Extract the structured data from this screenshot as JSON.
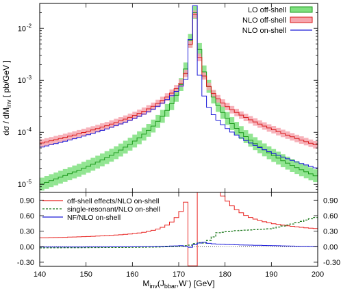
{
  "chart_data": [
    {
      "type": "line",
      "panel": "main",
      "scale": "log",
      "ylabel_parts": {
        "main": "dσ / dM",
        "sub": "inv",
        "rest": "  [ pb/GeV ]"
      },
      "xlim": [
        140,
        200
      ],
      "ylim": [
        7e-06,
        0.03
      ],
      "yticks": [
        {
          "value": 1e-05,
          "base": "10",
          "exp": "-5"
        },
        {
          "value": 0.0001,
          "base": "10",
          "exp": "-4"
        },
        {
          "value": 0.001,
          "base": "10",
          "exp": "-3"
        },
        {
          "value": 0.01,
          "base": "10",
          "exp": "-2"
        }
      ],
      "legend_position": "top-right",
      "series": [
        {
          "name": "LO off-shell",
          "style": "band",
          "color": "#1a9a1a",
          "fill": "#7fe07f",
          "x": [
            140,
            141,
            142,
            143,
            144,
            145,
            146,
            147,
            148,
            149,
            150,
            151,
            152,
            153,
            154,
            155,
            156,
            157,
            158,
            159,
            160,
            161,
            162,
            163,
            164,
            165,
            166,
            167,
            168,
            169,
            170,
            171,
            172,
            173,
            174,
            175,
            176,
            177,
            178,
            179,
            180,
            181,
            182,
            183,
            184,
            185,
            186,
            187,
            188,
            189,
            190,
            191,
            192,
            193,
            194,
            195,
            196,
            197,
            198,
            199
          ],
          "values": [
            1.01e-05,
            1.09e-05,
            1.18e-05,
            1.27e-05,
            1.37e-05,
            1.48e-05,
            1.6e-05,
            1.73e-05,
            1.87e-05,
            2.04e-05,
            2.22e-05,
            2.43e-05,
            2.67e-05,
            2.94e-05,
            3.26e-05,
            3.63e-05,
            4.06e-05,
            4.57e-05,
            5.18e-05,
            5.9e-05,
            6.79e-05,
            7.86e-05,
            9.22e-05,
            0.000109,
            0.000132,
            0.000162,
            0.000203,
            0.000263,
            0.000355,
            0.000512,
            0.000824,
            0.00165,
            0.00582,
            0.02,
            0.0039,
            0.00145,
            0.000761,
            0.000476,
            0.000328,
            0.000241,
            0.000185,
            0.000147,
            0.000119,
            9.86e-05,
            8.28e-05,
            7.04e-05,
            6.05e-05,
            5.25e-05,
            4.59e-05,
            4.04e-05,
            3.58e-05,
            3.19e-05,
            2.85e-05,
            2.56e-05,
            2.31e-05,
            2.1e-05,
            1.91e-05,
            1.74e-05,
            1.59e-05,
            1.46e-05
          ],
          "band_factor": 1.33
        },
        {
          "name": "NLO off-shell",
          "style": "band",
          "color": "#d81a1a",
          "fill": "#f6a5ae",
          "x": [
            140,
            141,
            142,
            143,
            144,
            145,
            146,
            147,
            148,
            149,
            150,
            151,
            152,
            153,
            154,
            155,
            156,
            157,
            158,
            159,
            160,
            161,
            162,
            163,
            164,
            165,
            166,
            167,
            168,
            169,
            170,
            171,
            172,
            173,
            174,
            175,
            176,
            177,
            178,
            179,
            180,
            181,
            182,
            183,
            184,
            185,
            186,
            187,
            188,
            189,
            190,
            191,
            192,
            193,
            194,
            195,
            196,
            197,
            198,
            199
          ],
          "values": [
            6.23e-05,
            6.54e-05,
            6.87e-05,
            7.22e-05,
            7.59e-05,
            7.99e-05,
            8.42e-05,
            8.88e-05,
            9.38e-05,
            9.92e-05,
            0.000105,
            0.000111,
            0.000118,
            0.000126,
            0.000134,
            0.000144,
            0.000154,
            0.000166,
            0.000179,
            0.000194,
            0.000211,
            0.000231,
            0.000254,
            0.000282,
            0.000316,
            0.000358,
            0.00041,
            0.000477,
            0.000566,
            0.000689,
            0.00088,
            0.00135,
            0.00494,
            0.0185,
            0.00276,
            0.00121,
            0.000761,
            0.000556,
            0.000441,
            0.000366,
            0.000312,
            0.000272,
            0.00024,
            0.000214,
            0.000193,
            0.000174,
            0.000158,
            0.000144,
            0.000132,
            0.000121,
            0.000112,
            0.000103,
            9.52e-05,
            8.82e-05,
            8.19e-05,
            7.61e-05,
            7.09e-05,
            6.61e-05,
            6.17e-05,
            5.76e-05
          ],
          "band_factor": 1.18
        },
        {
          "name": "NLO on-shell",
          "style": "line",
          "color": "#1a1ad8",
          "x": [
            140,
            141,
            142,
            143,
            144,
            145,
            146,
            147,
            148,
            149,
            150,
            151,
            152,
            153,
            154,
            155,
            156,
            157,
            158,
            159,
            160,
            161,
            162,
            163,
            164,
            165,
            166,
            167,
            168,
            169,
            170,
            171,
            172,
            173,
            174,
            175,
            176,
            177,
            178,
            179,
            180,
            181,
            182,
            183,
            184,
            185,
            186,
            187,
            188,
            189,
            190,
            191,
            192,
            193,
            194,
            195,
            196,
            197,
            198,
            199
          ],
          "values": [
            5.2e-05,
            5.47e-05,
            5.76e-05,
            6.06e-05,
            6.39e-05,
            6.74e-05,
            7.12e-05,
            7.53e-05,
            7.97e-05,
            8.45e-05,
            8.97e-05,
            9.54e-05,
            0.000102,
            0.000109,
            0.000116,
            0.000125,
            0.000135,
            0.000145,
            0.000157,
            0.000171,
            0.000186,
            0.000203,
            0.000224,
            0.000249,
            0.000279,
            0.000317,
            0.000364,
            0.000424,
            0.000503,
            0.000612,
            0.000775,
            0.00104,
            0.00612,
            0.0272,
            0.00125,
            0.000499,
            0.000302,
            0.000218,
            0.000171,
            0.00014,
            0.000118,
            0.000101,
            8.83e-05,
            7.79e-05,
            6.94e-05,
            6.22e-05,
            5.61e-05,
            5.09e-05,
            4.64e-05,
            4.25e-05,
            3.91e-05,
            3.61e-05,
            3.34e-05,
            3.1e-05,
            2.89e-05,
            2.69e-05,
            2.52e-05,
            2.36e-05,
            2.21e-05,
            2.08e-05
          ]
        }
      ]
    },
    {
      "type": "line",
      "panel": "ratio",
      "xlabel_parts": {
        "main": "M",
        "sub1": "inv",
        "mid": "(J",
        "sub2": "bbar",
        "mid2": ",W",
        "sup": "-",
        "rest": ")  [GeV]"
      },
      "xlim": [
        140,
        200
      ],
      "ylim": [
        -0.38,
        1.05
      ],
      "xticks": [
        "140",
        "150",
        "160",
        "170",
        "180",
        "190",
        "200"
      ],
      "yticks": [
        "-0.30",
        "0.00",
        "0.30",
        "0.60",
        "0.90"
      ],
      "ytick_values": [
        -0.3,
        0,
        0.3,
        0.6,
        0.9
      ],
      "reference_line": 0,
      "legend_position": "top-left",
      "series": [
        {
          "name": "off-shell effects/NLO on-shell",
          "style": "step",
          "color": "#e8211e",
          "x": [
            140,
            141,
            142,
            143,
            144,
            145,
            146,
            147,
            148,
            149,
            150,
            151,
            152,
            153,
            154,
            155,
            156,
            157,
            158,
            159,
            160,
            161,
            162,
            163,
            164,
            165,
            166,
            167,
            168,
            169,
            170,
            171,
            172,
            173,
            174,
            175,
            176,
            177,
            178,
            179,
            180,
            181,
            182,
            183,
            184,
            185,
            186,
            187,
            188,
            189,
            190,
            191,
            192,
            193,
            194,
            195,
            196,
            197,
            198,
            199
          ],
          "values": [
            0.172,
            0.174,
            0.176,
            0.178,
            0.18,
            0.182,
            0.185,
            0.188,
            0.191,
            0.194,
            0.197,
            0.201,
            0.205,
            0.209,
            0.214,
            0.219,
            0.225,
            0.231,
            0.238,
            0.246,
            0.255,
            0.266,
            0.28,
            0.297,
            0.317,
            0.342,
            0.375,
            0.417,
            0.478,
            0.563,
            0.68,
            0.86,
            -0.37,
            -0.37,
            1.2,
            1.2,
            1.2,
            1.2,
            1.1,
            0.98,
            0.88,
            0.79,
            0.715,
            0.655,
            0.605,
            0.565,
            0.533,
            0.506,
            0.482,
            0.462,
            0.445,
            0.43,
            0.417,
            0.405,
            0.394,
            0.384,
            0.375,
            0.366,
            0.358,
            0.351
          ]
        },
        {
          "name": "single-resonant/NLO on-shell",
          "style": "dashed-step",
          "color": "#1e7a1e",
          "x": [
            140,
            141,
            142,
            143,
            144,
            145,
            146,
            147,
            148,
            149,
            150,
            151,
            152,
            153,
            154,
            155,
            156,
            157,
            158,
            159,
            160,
            161,
            162,
            163,
            164,
            165,
            166,
            167,
            168,
            169,
            170,
            171,
            172,
            173,
            174,
            175,
            176,
            177,
            178,
            179,
            180,
            181,
            182,
            183,
            184,
            185,
            186,
            187,
            188,
            189,
            190,
            191,
            192,
            193,
            194,
            195,
            196,
            197,
            198,
            199
          ],
          "values": [
            -0.022,
            -0.021,
            -0.021,
            -0.02,
            -0.02,
            -0.019,
            -0.019,
            -0.018,
            -0.018,
            -0.017,
            -0.017,
            -0.016,
            -0.016,
            -0.015,
            -0.015,
            -0.014,
            -0.014,
            -0.013,
            -0.013,
            -0.012,
            -0.011,
            -0.01,
            -0.009,
            -0.008,
            -0.007,
            -0.005,
            -0.003,
            -0.001,
            0.002,
            0.005,
            0.01,
            0.02,
            0.03,
            0.06,
            0.08,
            0.07,
            0.12,
            0.19,
            0.27,
            0.28,
            0.29,
            0.3,
            0.31,
            0.315,
            0.32,
            0.325,
            0.33,
            0.335,
            0.34,
            0.345,
            0.36,
            0.38,
            0.4,
            0.42,
            0.44,
            0.465,
            0.49,
            0.515,
            0.54,
            0.565
          ]
        },
        {
          "name": "NF/NLO on-shell",
          "style": "step",
          "color": "#1a1ad8",
          "x": [
            140,
            141,
            142,
            143,
            144,
            145,
            146,
            147,
            148,
            149,
            150,
            151,
            152,
            153,
            154,
            155,
            156,
            157,
            158,
            159,
            160,
            161,
            162,
            163,
            164,
            165,
            166,
            167,
            168,
            169,
            170,
            171,
            172,
            173,
            174,
            175,
            176,
            177,
            178,
            179,
            180,
            181,
            182,
            183,
            184,
            185,
            186,
            187,
            188,
            189,
            190,
            191,
            192,
            193,
            194,
            195,
            196,
            197,
            198,
            199
          ],
          "values": [
            -0.005,
            -0.005,
            -0.005,
            -0.005,
            -0.005,
            -0.005,
            -0.005,
            -0.005,
            -0.005,
            -0.005,
            -0.004,
            -0.004,
            -0.004,
            -0.004,
            -0.004,
            -0.003,
            -0.003,
            -0.003,
            -0.002,
            -0.002,
            -0.001,
            0,
            0.001,
            0.002,
            0.003,
            0.005,
            0.007,
            0.01,
            0.013,
            0.016,
            0.02,
            0.01,
            -0.01,
            0.04,
            0.07,
            0.085,
            0.065,
            0.055,
            0.05,
            0.046,
            0.043,
            0.04,
            0.037,
            0.034,
            0.032,
            0.03,
            0.028,
            0.026,
            0.024,
            0.022,
            0.02,
            0.018,
            0.016,
            0.014,
            0.012,
            0.01,
            0.008,
            0.006,
            0.004,
            0.002
          ]
        }
      ]
    }
  ]
}
